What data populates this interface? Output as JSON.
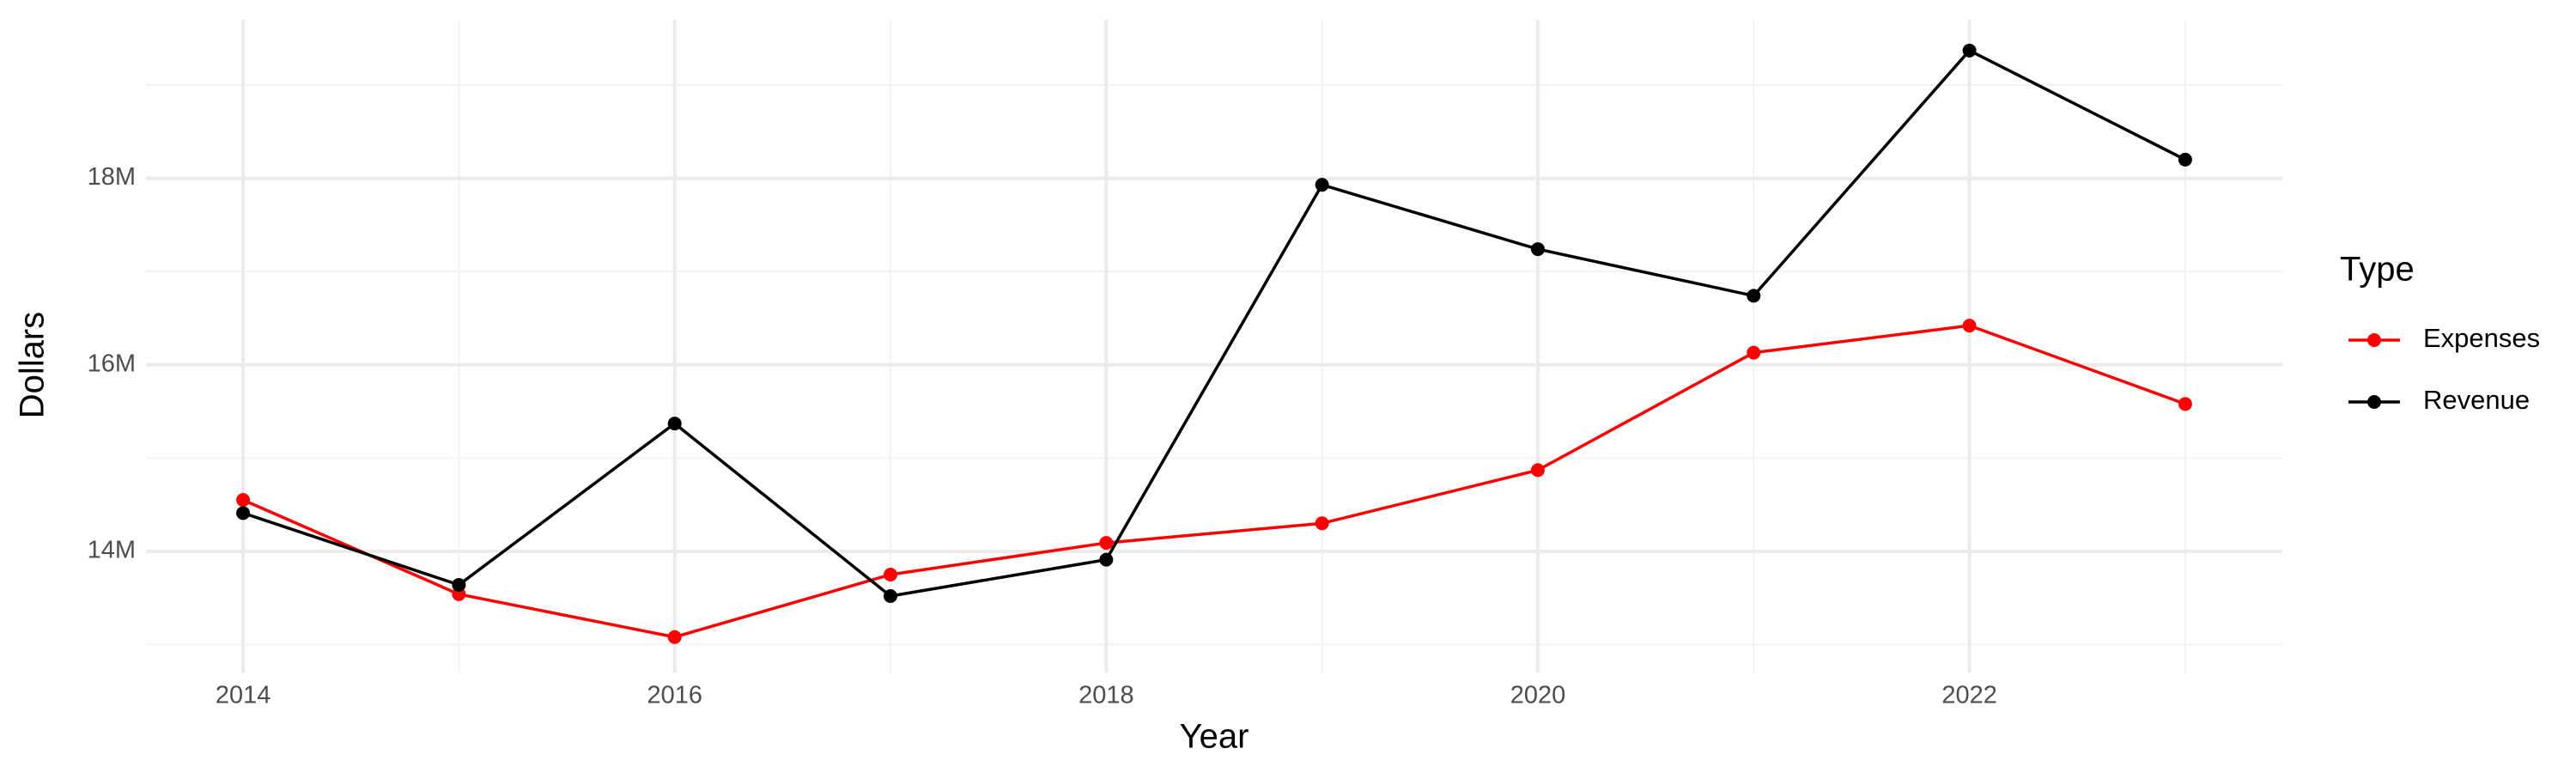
{
  "chart_data": {
    "type": "line",
    "x_label": "Year",
    "y_label": "Dollars",
    "legend_title": "Type",
    "x": [
      2014,
      2015,
      2016,
      2017,
      2018,
      2019,
      2020,
      2021,
      2022,
      2023
    ],
    "series": [
      {
        "name": "Expenses",
        "color": "#ff0000",
        "values": [
          14550000,
          13540000,
          13080000,
          13750000,
          14090000,
          14300000,
          14870000,
          16130000,
          16420000,
          15580000
        ]
      },
      {
        "name": "Revenue",
        "color": "#000000",
        "values": [
          14410000,
          13640000,
          15370000,
          13520000,
          13910000,
          17930000,
          17240000,
          16740000,
          19370000,
          18200000
        ]
      }
    ],
    "xlim": [
      2013.55,
      2023.45
    ],
    "xticks": [
      2014,
      2016,
      2018,
      2020,
      2022
    ],
    "ylim": [
      12700000,
      19700000
    ],
    "yticks": [
      {
        "value": 14000000,
        "label": "14M"
      },
      {
        "value": 16000000,
        "label": "16M"
      },
      {
        "value": 18000000,
        "label": "18M"
      }
    ],
    "grid": true,
    "legend_position": "right"
  }
}
